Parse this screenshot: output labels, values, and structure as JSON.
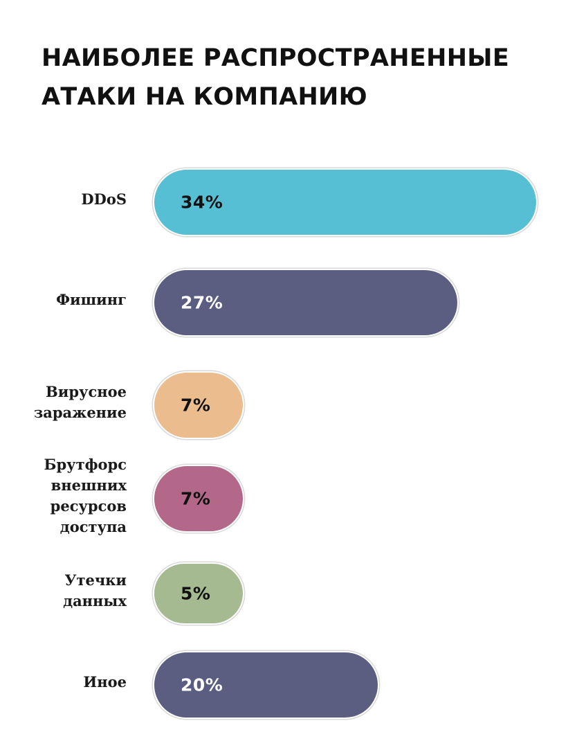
{
  "title_lines": [
    "НАИБОЛЕЕ РАСПРОСТРАНЕННЫЕ",
    "АТАКИ НА КОМПАНИЮ"
  ],
  "chart_data": {
    "type": "bar",
    "orientation": "horizontal",
    "title": "НАИБОЛЕЕ РАСПРОСТРАНЕННЫЕ АТАКИ НА КОМПАНИЮ",
    "categories": [
      "DDoS",
      "Фишинг",
      "Вирусное заражение",
      "Брутфорс внешних ресурсов доступа",
      "Утечки данных",
      "Иное"
    ],
    "category_lines": [
      [
        "DDoS"
      ],
      [
        "Фишинг"
      ],
      [
        "Вирусное",
        "заражение"
      ],
      [
        "Брутфорс",
        "внешних",
        "ресурсов",
        "доступа"
      ],
      [
        "Утечки",
        "данных"
      ],
      [
        "Иное"
      ]
    ],
    "values": [
      34,
      27,
      7,
      7,
      5,
      20
    ],
    "value_labels": [
      "34%",
      "27%",
      "7%",
      "7%",
      "5%",
      "20%"
    ],
    "unit": "%",
    "colors": [
      "#56bfd3",
      "#5b5e80",
      "#ebbd8e",
      "#b46889",
      "#a6ba92",
      "#5b5e80"
    ],
    "label_colors": [
      "#111111",
      "#ffffff",
      "#111111",
      "#111111",
      "#111111",
      "#ffffff"
    ],
    "grid": false,
    "legend": "none"
  }
}
